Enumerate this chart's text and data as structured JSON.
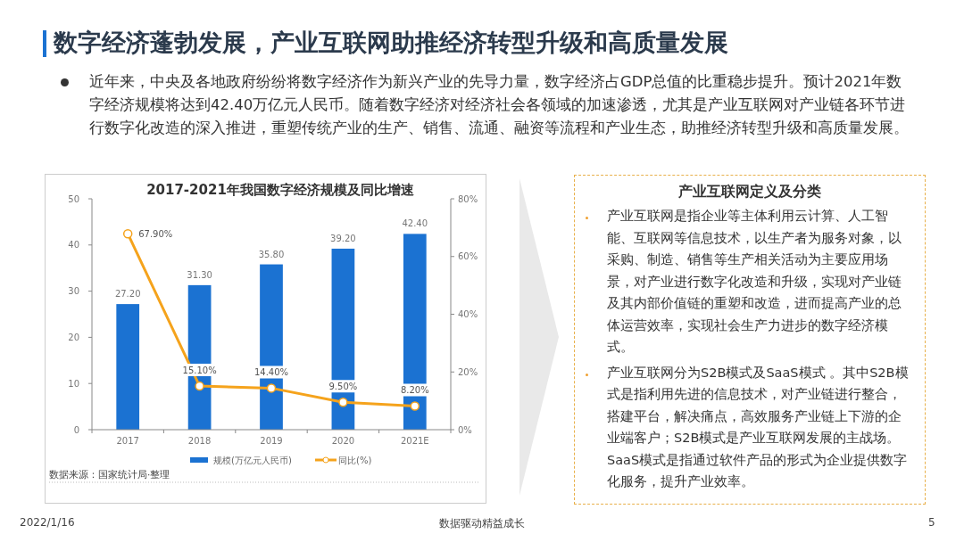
{
  "chart_data": [
    {
      "type": "other",
      "title": "数字经济蓬勃发展，产业互联网助推经济转型升级和高质量发展",
      "annotations": [
        "近年来，中央及各地政府纷纷将数字经济作为新兴产业的先导力量，数字经济占GDP总值的比重稳步提升。预计2021年数字经济规模将达到42.40万亿元人民币。随着数字经济对经济社会各领域的加速渗透，尤其是产业互联网对产业链各环节进行数字化改造的深入推进，重塑传统产业的生产、销售、流通、融资等流程和产业生态，助推经济转型升级和高质量发展。",
        "2022/1/16",
        "数据驱动精益成长",
        "5"
      ]
    },
    {
      "type": "bar",
      "title": "2017-2021年我国数字经济规模及同比增速",
      "categories": [
        "2017",
        "2018",
        "2019",
        "2020",
        "2021E"
      ],
      "series": [
        {
          "type": "bar",
          "name": "规模(万亿元人民币)",
          "color": "#1b72d2",
          "values": [
            27.2,
            31.3,
            35.8,
            39.2,
            42.4
          ],
          "value_labels": [
            "27.20",
            "31.30",
            "35.80",
            "39.20",
            "42.40"
          ]
        },
        {
          "type": "line",
          "axis": "y2",
          "name": "同比(%)",
          "color": "#f5a31c",
          "values": [
            67.9,
            15.1,
            14.4,
            9.5,
            8.2
          ],
          "value_labels": [
            "67.90%",
            "15.10%",
            "14.40%",
            "9.50%",
            "8.20%"
          ]
        }
      ],
      "ylim": [
        0,
        50
      ],
      "yticks": [
        0,
        10,
        20,
        30,
        40,
        50
      ],
      "y2lim": [
        0,
        80
      ],
      "y2ticks": [
        {
          "value": 0,
          "label": "0%"
        },
        {
          "value": 20,
          "label": "20%"
        },
        {
          "value": 40,
          "label": "40%"
        },
        {
          "value": 60,
          "label": "60%"
        },
        {
          "value": 80,
          "label": "80%"
        }
      ],
      "legend": "bottom",
      "marker": "circle",
      "annotations": [
        "数据来源：国家统计局·整理"
      ]
    },
    {
      "type": "other",
      "title": "产业互联网定义及分类",
      "annotations": [
        "产业互联网是指企业等主体利用云计算、人工智能、互联网等信息技术，以生产者为服务对象，以采购、制造、销售等生产相关活动为主要应用场景，对产业进行数字化改造和升级，实现对产业链及其内部价值链的重塑和改造，进而提高产业的总体运营效率，实现社会生产力进步的数字经济模式。",
        "产业互联网分为S2B模式及SaaS模式 。其中S2B模式是指利用先进的信息技术，对产业链进行整合，搭建平台，解决痛点，高效服务产业链上下游的企业端客户；S2B模式是产业互联网发展的主战场。SaaS模式是指通过软件产品的形式为企业提供数字化服务，提升产业效率。"
      ]
    }
  ]
}
